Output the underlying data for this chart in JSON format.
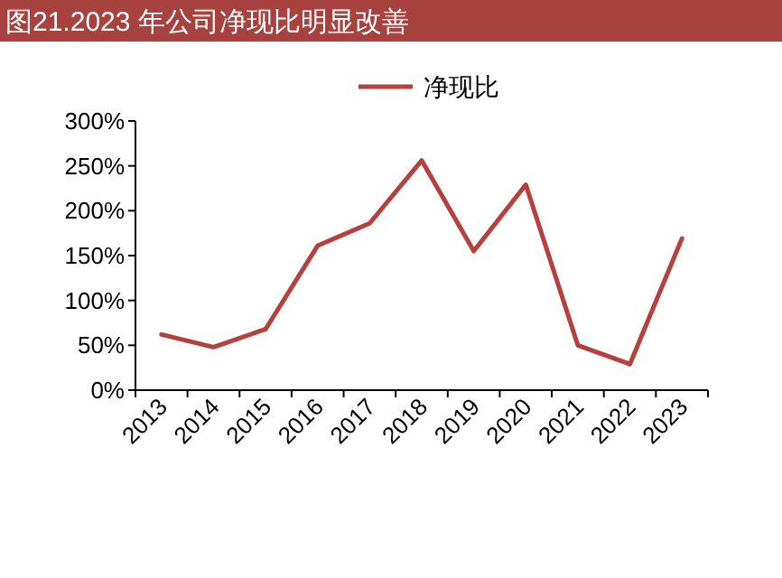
{
  "chart_data": {
    "type": "line",
    "title": "图21.2023 年公司净现比明显改善",
    "categories": [
      "2013",
      "2014",
      "2015",
      "2016",
      "2017",
      "2018",
      "2019",
      "2020",
      "2021",
      "2022",
      "2023"
    ],
    "series": [
      {
        "name": "净现比",
        "color": "#b5403d",
        "values": [
          62,
          48,
          68,
          161,
          186,
          256,
          155,
          229,
          50,
          29,
          169
        ]
      }
    ],
    "ylim": [
      0,
      300
    ],
    "yticks": [
      {
        "value": 0,
        "label": "0%"
      },
      {
        "value": 50,
        "label": "50%"
      },
      {
        "value": 100,
        "label": "100%"
      },
      {
        "value": 150,
        "label": "150%"
      },
      {
        "value": 200,
        "label": "200%"
      },
      {
        "value": 250,
        "label": "250%"
      },
      {
        "value": 300,
        "label": "300%"
      }
    ],
    "legend": "top",
    "grid": false,
    "marker": "none",
    "line_style": "solid"
  }
}
